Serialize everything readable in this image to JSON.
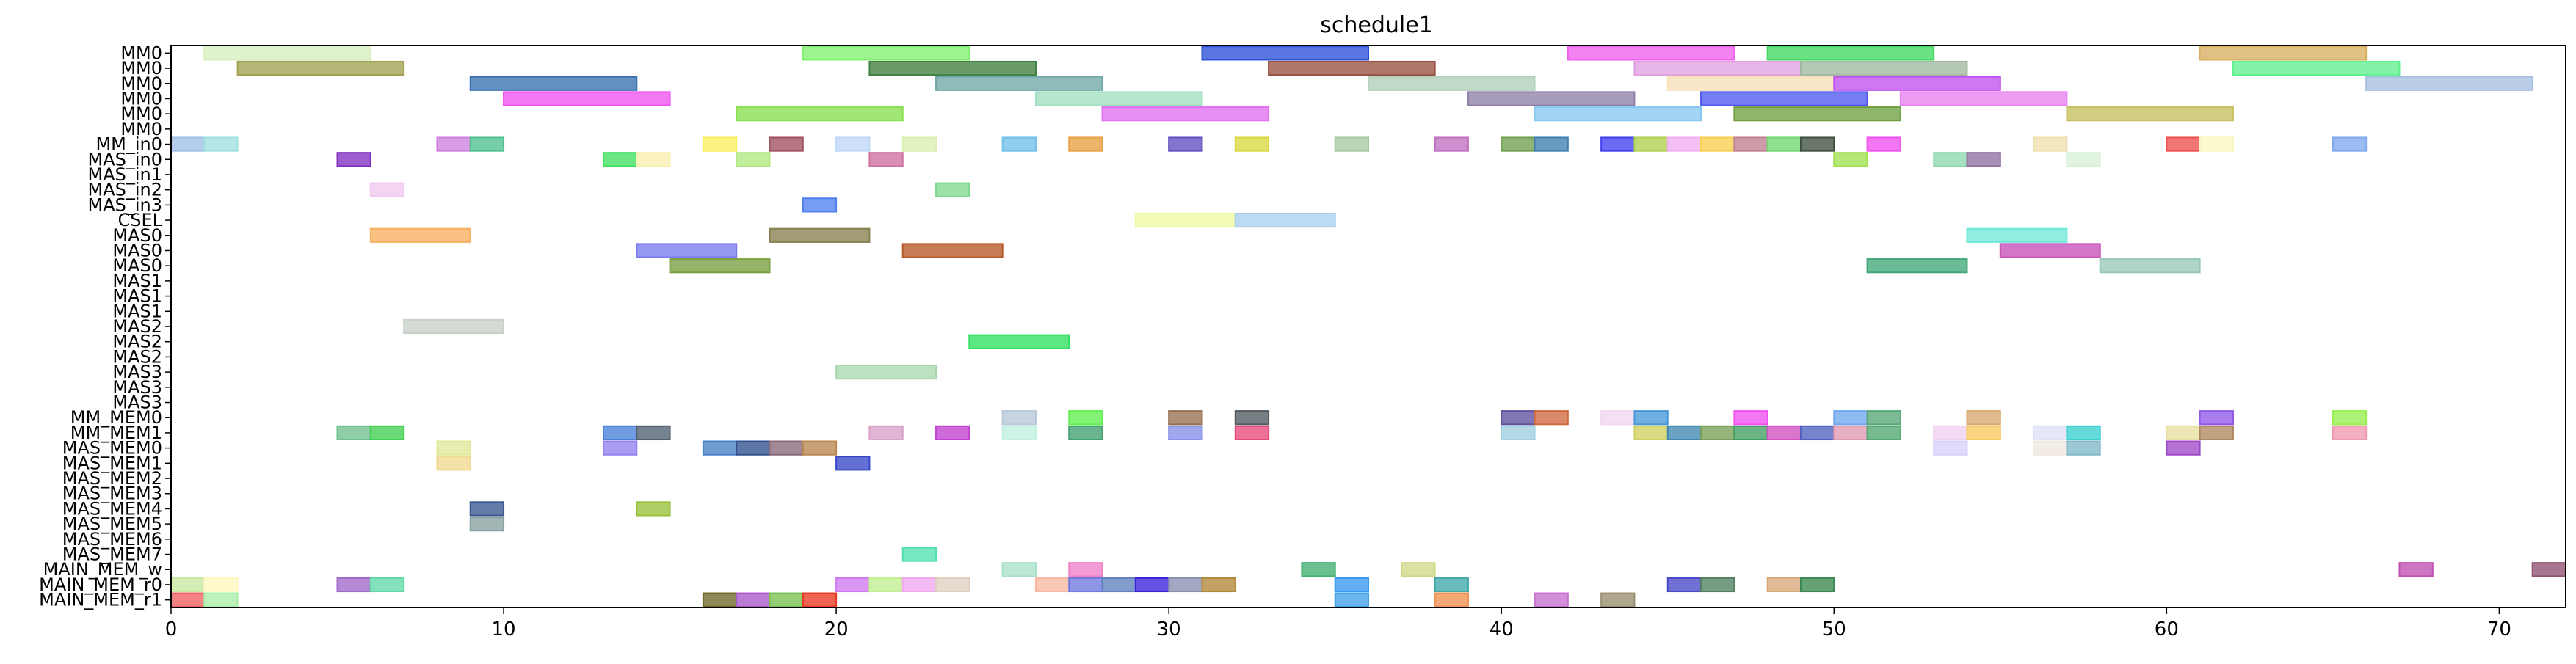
{
  "chart_data": {
    "type": "gantt",
    "title": "schedule1",
    "xlabel": "",
    "ylabel": "",
    "xlim": [
      0,
      72
    ],
    "xticks": [
      0,
      10,
      20,
      30,
      40,
      50,
      60,
      70
    ],
    "grid": false,
    "rows": [
      "MM0",
      "MM0",
      "MM0",
      "MM0",
      "MM0",
      "MM0",
      "MM_in0",
      "MAS_in0",
      "MAS_in1",
      "MAS_in2",
      "MAS_in3",
      "CSEL",
      "MAS0",
      "MAS0",
      "MAS0",
      "MAS1",
      "MAS1",
      "MAS1",
      "MAS2",
      "MAS2",
      "MAS2",
      "MAS3",
      "MAS3",
      "MAS3",
      "MM_MEM0",
      "MM_MEM1",
      "MAS_MEM0",
      "MAS_MEM1",
      "MAS_MEM2",
      "MAS_MEM3",
      "MAS_MEM4",
      "MAS_MEM5",
      "MAS_MEM6",
      "MAS_MEM7",
      "MAIN_MEM_w",
      "MAIN_MEM_r0",
      "MAIN_MEM_r1"
    ],
    "tasks": [
      {
        "row": 0,
        "start": 1,
        "end": 6,
        "color": "#d8f0c0"
      },
      {
        "row": 0,
        "start": 19,
        "end": 24,
        "color": "#80f070"
      },
      {
        "row": 0,
        "start": 31,
        "end": 36,
        "color": "#2a50d8"
      },
      {
        "row": 0,
        "start": 42,
        "end": 47,
        "color": "#f060f0"
      },
      {
        "row": 0,
        "start": 48,
        "end": 53,
        "color": "#40d860"
      },
      {
        "row": 0,
        "start": 61,
        "end": 66,
        "color": "#d8b060"
      },
      {
        "row": 1,
        "start": 2,
        "end": 7,
        "color": "#a0a050"
      },
      {
        "row": 1,
        "start": 21,
        "end": 26,
        "color": "#408040"
      },
      {
        "row": 1,
        "start": 33,
        "end": 38,
        "color": "#985040"
      },
      {
        "row": 1,
        "start": 44,
        "end": 49,
        "color": "#e0a0e0"
      },
      {
        "row": 1,
        "start": 49,
        "end": 54,
        "color": "#a0b8a0"
      },
      {
        "row": 1,
        "start": 62,
        "end": 67,
        "color": "#60f090"
      },
      {
        "row": 2,
        "start": 9,
        "end": 14,
        "color": "#3870b0"
      },
      {
        "row": 2,
        "start": 23,
        "end": 28,
        "color": "#70a8a8"
      },
      {
        "row": 2,
        "start": 36,
        "end": 41,
        "color": "#b0d0b8"
      },
      {
        "row": 2,
        "start": 45,
        "end": 50,
        "color": "#f8e0b8"
      },
      {
        "row": 2,
        "start": 50,
        "end": 55,
        "color": "#c050f0"
      },
      {
        "row": 2,
        "start": 66,
        "end": 71,
        "color": "#a8c0e0"
      },
      {
        "row": 3,
        "start": 10,
        "end": 15,
        "color": "#f050f0"
      },
      {
        "row": 3,
        "start": 26,
        "end": 31,
        "color": "#a0e0c0"
      },
      {
        "row": 3,
        "start": 39,
        "end": 44,
        "color": "#9080a8"
      },
      {
        "row": 3,
        "start": 46,
        "end": 51,
        "color": "#5058f0"
      },
      {
        "row": 3,
        "start": 52,
        "end": 57,
        "color": "#e880f0"
      },
      {
        "row": 4,
        "start": 17,
        "end": 22,
        "color": "#88e050"
      },
      {
        "row": 4,
        "start": 28,
        "end": 33,
        "color": "#e070f0"
      },
      {
        "row": 4,
        "start": 41,
        "end": 46,
        "color": "#88c8f0"
      },
      {
        "row": 4,
        "start": 47,
        "end": 52,
        "color": "#70a040"
      },
      {
        "row": 4,
        "start": 57,
        "end": 62,
        "color": "#c8c060"
      },
      {
        "row": 6,
        "start": 0,
        "end": 1,
        "color": "#a0c0e8"
      },
      {
        "row": 6,
        "start": 1,
        "end": 2,
        "color": "#a0e0e0"
      },
      {
        "row": 6,
        "start": 8,
        "end": 9,
        "color": "#d080e0"
      },
      {
        "row": 6,
        "start": 9,
        "end": 10,
        "color": "#50c090"
      },
      {
        "row": 6,
        "start": 16,
        "end": 17,
        "color": "#f8f060"
      },
      {
        "row": 6,
        "start": 18,
        "end": 19,
        "color": "#a05060"
      },
      {
        "row": 6,
        "start": 20,
        "end": 21,
        "color": "#c0d8f8"
      },
      {
        "row": 6,
        "start": 22,
        "end": 23,
        "color": "#d8f0b0"
      },
      {
        "row": 6,
        "start": 25,
        "end": 26,
        "color": "#70c0e8"
      },
      {
        "row": 6,
        "start": 27,
        "end": 28,
        "color": "#e8a040"
      },
      {
        "row": 6,
        "start": 30,
        "end": 31,
        "color": "#6050c0"
      },
      {
        "row": 6,
        "start": 32,
        "end": 33,
        "color": "#d8d840"
      },
      {
        "row": 6,
        "start": 35,
        "end": 36,
        "color": "#a8c8a0"
      },
      {
        "row": 6,
        "start": 38,
        "end": 39,
        "color": "#c070c0"
      },
      {
        "row": 6,
        "start": 40,
        "end": 41,
        "color": "#70a050"
      },
      {
        "row": 6,
        "start": 41,
        "end": 42,
        "color": "#4080b0"
      },
      {
        "row": 6,
        "start": 43,
        "end": 44,
        "color": "#4040f0"
      },
      {
        "row": 6,
        "start": 44,
        "end": 45,
        "color": "#b0d050"
      },
      {
        "row": 6,
        "start": 45,
        "end": 46,
        "color": "#f0b0f0"
      },
      {
        "row": 6,
        "start": 46,
        "end": 47,
        "color": "#f8d050"
      },
      {
        "row": 6,
        "start": 47,
        "end": 48,
        "color": "#c08090"
      },
      {
        "row": 6,
        "start": 48,
        "end": 49,
        "color": "#70d870"
      },
      {
        "row": 6,
        "start": 49,
        "end": 50,
        "color": "#405040"
      },
      {
        "row": 6,
        "start": 51,
        "end": 52,
        "color": "#f050f0"
      },
      {
        "row": 6,
        "start": 56,
        "end": 57,
        "color": "#f0e0b0"
      },
      {
        "row": 6,
        "start": 60,
        "end": 61,
        "color": "#f05050"
      },
      {
        "row": 6,
        "start": 61,
        "end": 62,
        "color": "#f8f8c0"
      },
      {
        "row": 6,
        "start": 65,
        "end": 66,
        "color": "#80a8f0"
      },
      {
        "row": 7,
        "start": 5,
        "end": 6,
        "color": "#8030c0"
      },
      {
        "row": 7,
        "start": 13,
        "end": 14,
        "color": "#40e060"
      },
      {
        "row": 7,
        "start": 14,
        "end": 15,
        "color": "#f8f0b0"
      },
      {
        "row": 7,
        "start": 17,
        "end": 18,
        "color": "#b0e880"
      },
      {
        "row": 7,
        "start": 21,
        "end": 22,
        "color": "#d070a0"
      },
      {
        "row": 7,
        "start": 50,
        "end": 51,
        "color": "#a0e050"
      },
      {
        "row": 7,
        "start": 53,
        "end": 54,
        "color": "#90d8b0"
      },
      {
        "row": 7,
        "start": 54,
        "end": 55,
        "color": "#9070a0"
      },
      {
        "row": 7,
        "start": 57,
        "end": 58,
        "color": "#d8f0d8"
      },
      {
        "row": 9,
        "start": 6,
        "end": 7,
        "color": "#f0c8f0"
      },
      {
        "row": 9,
        "start": 23,
        "end": 24,
        "color": "#80d890"
      },
      {
        "row": 10,
        "start": 19,
        "end": 20,
        "color": "#5080f0"
      },
      {
        "row": 11,
        "start": 29,
        "end": 32,
        "color": "#f0f8a0"
      },
      {
        "row": 11,
        "start": 32,
        "end": 35,
        "color": "#a8d0f0"
      },
      {
        "row": 12,
        "start": 6,
        "end": 9,
        "color": "#f8b060"
      },
      {
        "row": 12,
        "start": 18,
        "end": 21,
        "color": "#888050"
      },
      {
        "row": 12,
        "start": 54,
        "end": 57,
        "color": "#70e8d8"
      },
      {
        "row": 13,
        "start": 14,
        "end": 17,
        "color": "#7878f0"
      },
      {
        "row": 13,
        "start": 22,
        "end": 25,
        "color": "#b85828"
      },
      {
        "row": 13,
        "start": 55,
        "end": 58,
        "color": "#c850b8"
      },
      {
        "row": 14,
        "start": 15,
        "end": 18,
        "color": "#78a040"
      },
      {
        "row": 14,
        "start": 51,
        "end": 54,
        "color": "#40a878"
      },
      {
        "row": 14,
        "start": 58,
        "end": 61,
        "color": "#98c8b8"
      },
      {
        "row": 18,
        "start": 7,
        "end": 10,
        "color": "#c8d0c8"
      },
      {
        "row": 19,
        "start": 24,
        "end": 27,
        "color": "#30e060"
      },
      {
        "row": 21,
        "start": 20,
        "end": 23,
        "color": "#a8d8b0"
      },
      {
        "row": 24,
        "start": 25,
        "end": 26,
        "color": "#b8c8d8"
      },
      {
        "row": 24,
        "start": 27,
        "end": 28,
        "color": "#60f050"
      },
      {
        "row": 24,
        "start": 30,
        "end": 31,
        "color": "#987050"
      },
      {
        "row": 24,
        "start": 32,
        "end": 33,
        "color": "#505860"
      },
      {
        "row": 24,
        "start": 40,
        "end": 41,
        "color": "#6050a0"
      },
      {
        "row": 24,
        "start": 41,
        "end": 42,
        "color": "#d06840"
      },
      {
        "row": 24,
        "start": 43,
        "end": 44,
        "color": "#f0d8f0"
      },
      {
        "row": 24,
        "start": 44,
        "end": 45,
        "color": "#4898d8"
      },
      {
        "row": 24,
        "start": 47,
        "end": 48,
        "color": "#f050f0"
      },
      {
        "row": 24,
        "start": 50,
        "end": 51,
        "color": "#70a8f0"
      },
      {
        "row": 24,
        "start": 51,
        "end": 52,
        "color": "#58a878"
      },
      {
        "row": 24,
        "start": 54,
        "end": 55,
        "color": "#d8a870"
      },
      {
        "row": 24,
        "start": 61,
        "end": 62,
        "color": "#9058e8"
      },
      {
        "row": 24,
        "start": 65,
        "end": 66,
        "color": "#98f050"
      },
      {
        "row": 25,
        "start": 5,
        "end": 6,
        "color": "#70c090"
      },
      {
        "row": 25,
        "start": 6,
        "end": 7,
        "color": "#40d050"
      },
      {
        "row": 25,
        "start": 13,
        "end": 14,
        "color": "#4880d8"
      },
      {
        "row": 25,
        "start": 14,
        "end": 15,
        "color": "#506070"
      },
      {
        "row": 25,
        "start": 21,
        "end": 22,
        "color": "#d8a0c8"
      },
      {
        "row": 25,
        "start": 23,
        "end": 24,
        "color": "#c040d0"
      },
      {
        "row": 25,
        "start": 25,
        "end": 26,
        "color": "#c0f0e0"
      },
      {
        "row": 25,
        "start": 27,
        "end": 28,
        "color": "#40a070"
      },
      {
        "row": 25,
        "start": 30,
        "end": 31,
        "color": "#8890e8"
      },
      {
        "row": 25,
        "start": 32,
        "end": 33,
        "color": "#e84878"
      },
      {
        "row": 25,
        "start": 40,
        "end": 41,
        "color": "#a0d0e0"
      },
      {
        "row": 25,
        "start": 44,
        "end": 45,
        "color": "#d0d060"
      },
      {
        "row": 25,
        "start": 45,
        "end": 46,
        "color": "#4088b0"
      },
      {
        "row": 25,
        "start": 46,
        "end": 47,
        "color": "#78a058"
      },
      {
        "row": 25,
        "start": 47,
        "end": 48,
        "color": "#40a060"
      },
      {
        "row": 25,
        "start": 48,
        "end": 49,
        "color": "#d050c0"
      },
      {
        "row": 25,
        "start": 49,
        "end": 50,
        "color": "#5060c0"
      },
      {
        "row": 25,
        "start": 50,
        "end": 51,
        "color": "#e098b0"
      },
      {
        "row": 25,
        "start": 51,
        "end": 52,
        "color": "#50a870"
      },
      {
        "row": 25,
        "start": 53,
        "end": 54,
        "color": "#f0d0f0"
      },
      {
        "row": 25,
        "start": 54,
        "end": 55,
        "color": "#f8c860"
      },
      {
        "row": 25,
        "start": 56,
        "end": 57,
        "color": "#e0e0f8"
      },
      {
        "row": 25,
        "start": 57,
        "end": 58,
        "color": "#38d0d0"
      },
      {
        "row": 25,
        "start": 60,
        "end": 61,
        "color": "#e8e0a0"
      },
      {
        "row": 25,
        "start": 61,
        "end": 62,
        "color": "#b08860"
      },
      {
        "row": 25,
        "start": 65,
        "end": 66,
        "color": "#f098b0"
      },
      {
        "row": 26,
        "start": 8,
        "end": 9,
        "color": "#e0e898"
      },
      {
        "row": 26,
        "start": 13,
        "end": 14,
        "color": "#9080f0"
      },
      {
        "row": 26,
        "start": 16,
        "end": 17,
        "color": "#4880c8"
      },
      {
        "row": 26,
        "start": 17,
        "end": 18,
        "color": "#305090"
      },
      {
        "row": 26,
        "start": 18,
        "end": 19,
        "color": "#886878"
      },
      {
        "row": 26,
        "start": 19,
        "end": 20,
        "color": "#b88850"
      },
      {
        "row": 26,
        "start": 53,
        "end": 54,
        "color": "#d8d0f8"
      },
      {
        "row": 26,
        "start": 56,
        "end": 57,
        "color": "#f0e8e0"
      },
      {
        "row": 26,
        "start": 57,
        "end": 58,
        "color": "#80b8c8"
      },
      {
        "row": 26,
        "start": 60,
        "end": 61,
        "color": "#a048c8"
      },
      {
        "row": 27,
        "start": 8,
        "end": 9,
        "color": "#f0d890"
      },
      {
        "row": 27,
        "start": 20,
        "end": 21,
        "color": "#3848c8"
      },
      {
        "row": 30,
        "start": 9,
        "end": 10,
        "color": "#385890"
      },
      {
        "row": 30,
        "start": 14,
        "end": 15,
        "color": "#98c038"
      },
      {
        "row": 31,
        "start": 9,
        "end": 10,
        "color": "#88a0a0"
      },
      {
        "row": 33,
        "start": 22,
        "end": 23,
        "color": "#50e0b0"
      },
      {
        "row": 34,
        "start": 25,
        "end": 26,
        "color": "#a8e0c8"
      },
      {
        "row": 34,
        "start": 27,
        "end": 28,
        "color": "#f080c8"
      },
      {
        "row": 34,
        "start": 34,
        "end": 35,
        "color": "#40b070"
      },
      {
        "row": 34,
        "start": 37,
        "end": 38,
        "color": "#d0d888"
      },
      {
        "row": 34,
        "start": 67,
        "end": 68,
        "color": "#c050b0"
      },
      {
        "row": 34,
        "start": 71,
        "end": 72,
        "color": "#905070"
      },
      {
        "row": 35,
        "start": 0,
        "end": 1,
        "color": "#c8e8a0"
      },
      {
        "row": 35,
        "start": 1,
        "end": 2,
        "color": "#fff8c0"
      },
      {
        "row": 35,
        "start": 5,
        "end": 6,
        "color": "#a068c8"
      },
      {
        "row": 35,
        "start": 6,
        "end": 7,
        "color": "#60d8a8"
      },
      {
        "row": 35,
        "start": 20,
        "end": 21,
        "color": "#d078f0"
      },
      {
        "row": 35,
        "start": 21,
        "end": 22,
        "color": "#c0f090"
      },
      {
        "row": 35,
        "start": 22,
        "end": 23,
        "color": "#f0a8f0"
      },
      {
        "row": 35,
        "start": 23,
        "end": 24,
        "color": "#e0d0c0"
      },
      {
        "row": 35,
        "start": 26,
        "end": 27,
        "color": "#f8b8a0"
      },
      {
        "row": 35,
        "start": 27,
        "end": 28,
        "color": "#7078e0"
      },
      {
        "row": 35,
        "start": 28,
        "end": 29,
        "color": "#6080c0"
      },
      {
        "row": 35,
        "start": 29,
        "end": 30,
        "color": "#3820d8"
      },
      {
        "row": 35,
        "start": 30,
        "end": 31,
        "color": "#8890b0"
      },
      {
        "row": 35,
        "start": 31,
        "end": 32,
        "color": "#b08838"
      },
      {
        "row": 35,
        "start": 35,
        "end": 36,
        "color": "#3898f0"
      },
      {
        "row": 35,
        "start": 38,
        "end": 39,
        "color": "#40a8a8"
      },
      {
        "row": 35,
        "start": 45,
        "end": 46,
        "color": "#4848c8"
      },
      {
        "row": 35,
        "start": 46,
        "end": 47,
        "color": "#508060"
      },
      {
        "row": 35,
        "start": 48,
        "end": 49,
        "color": "#d8a878"
      },
      {
        "row": 35,
        "start": 49,
        "end": 50,
        "color": "#388850"
      },
      {
        "row": 36,
        "start": 0,
        "end": 1,
        "color": "#f06060"
      },
      {
        "row": 36,
        "start": 1,
        "end": 2,
        "color": "#a8f0a8"
      },
      {
        "row": 36,
        "start": 16,
        "end": 17,
        "color": "#706828"
      },
      {
        "row": 36,
        "start": 17,
        "end": 18,
        "color": "#a858c8"
      },
      {
        "row": 36,
        "start": 18,
        "end": 19,
        "color": "#78c050"
      },
      {
        "row": 36,
        "start": 19,
        "end": 20,
        "color": "#e83820"
      },
      {
        "row": 36,
        "start": 35,
        "end": 36,
        "color": "#40a0e8"
      },
      {
        "row": 36,
        "start": 38,
        "end": 39,
        "color": "#f09050"
      },
      {
        "row": 36,
        "start": 41,
        "end": 42,
        "color": "#c870d0"
      },
      {
        "row": 36,
        "start": 43,
        "end": 44,
        "color": "#989070"
      }
    ]
  }
}
